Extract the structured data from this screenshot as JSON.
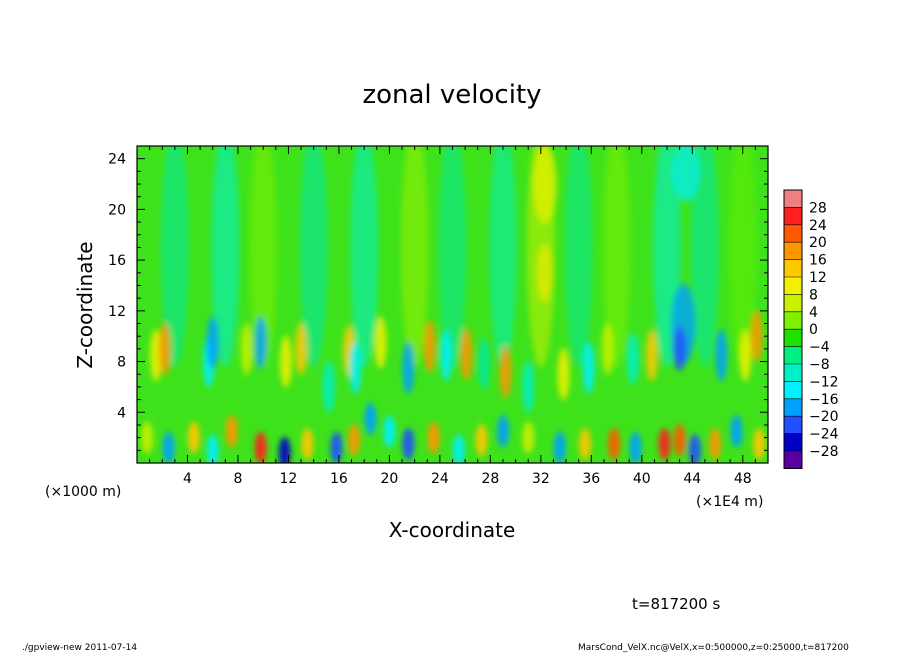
{
  "chart_data": {
    "type": "heatmap",
    "title": "zonal velocity",
    "xlabel": "X-coordinate",
    "ylabel": "Z-coordinate",
    "x_unit_left": "(×1000 m)",
    "x_unit_right": "(×1E4 m)",
    "xlim": [
      0,
      50
    ],
    "ylim": [
      0,
      25
    ],
    "xticks": [
      4,
      8,
      12,
      16,
      20,
      24,
      28,
      32,
      36,
      40,
      44,
      48
    ],
    "yticks": [
      4,
      8,
      12,
      16,
      20,
      24
    ],
    "colorbar": {
      "tick_labels": [
        "28",
        "24",
        "20",
        "16",
        "12",
        "8",
        "4",
        "0",
        "−4",
        "−8",
        "−12",
        "−16",
        "−20",
        "−24",
        "−28"
      ],
      "levels": [
        32,
        28,
        24,
        20,
        16,
        12,
        8,
        4,
        0,
        -4,
        -8,
        -12,
        -16,
        -20,
        -24,
        -28,
        -32
      ],
      "colors": [
        "#f08080",
        "#ff2020",
        "#ff5a00",
        "#ff9600",
        "#ffc800",
        "#f0f000",
        "#c8f000",
        "#7ef000",
        "#20e000",
        "#00f080",
        "#00f0c8",
        "#00f0ff",
        "#00a0ff",
        "#2050ff",
        "#0000c8",
        "#5a00a0"
      ]
    },
    "grid": false
  },
  "time_label": "t=817200 s",
  "footer_left": "./gpview-new  2011-07-14",
  "footer_right": "MarsCond_VelX.nc@VelX,x=0:500000,z=0:25000,t=817200"
}
